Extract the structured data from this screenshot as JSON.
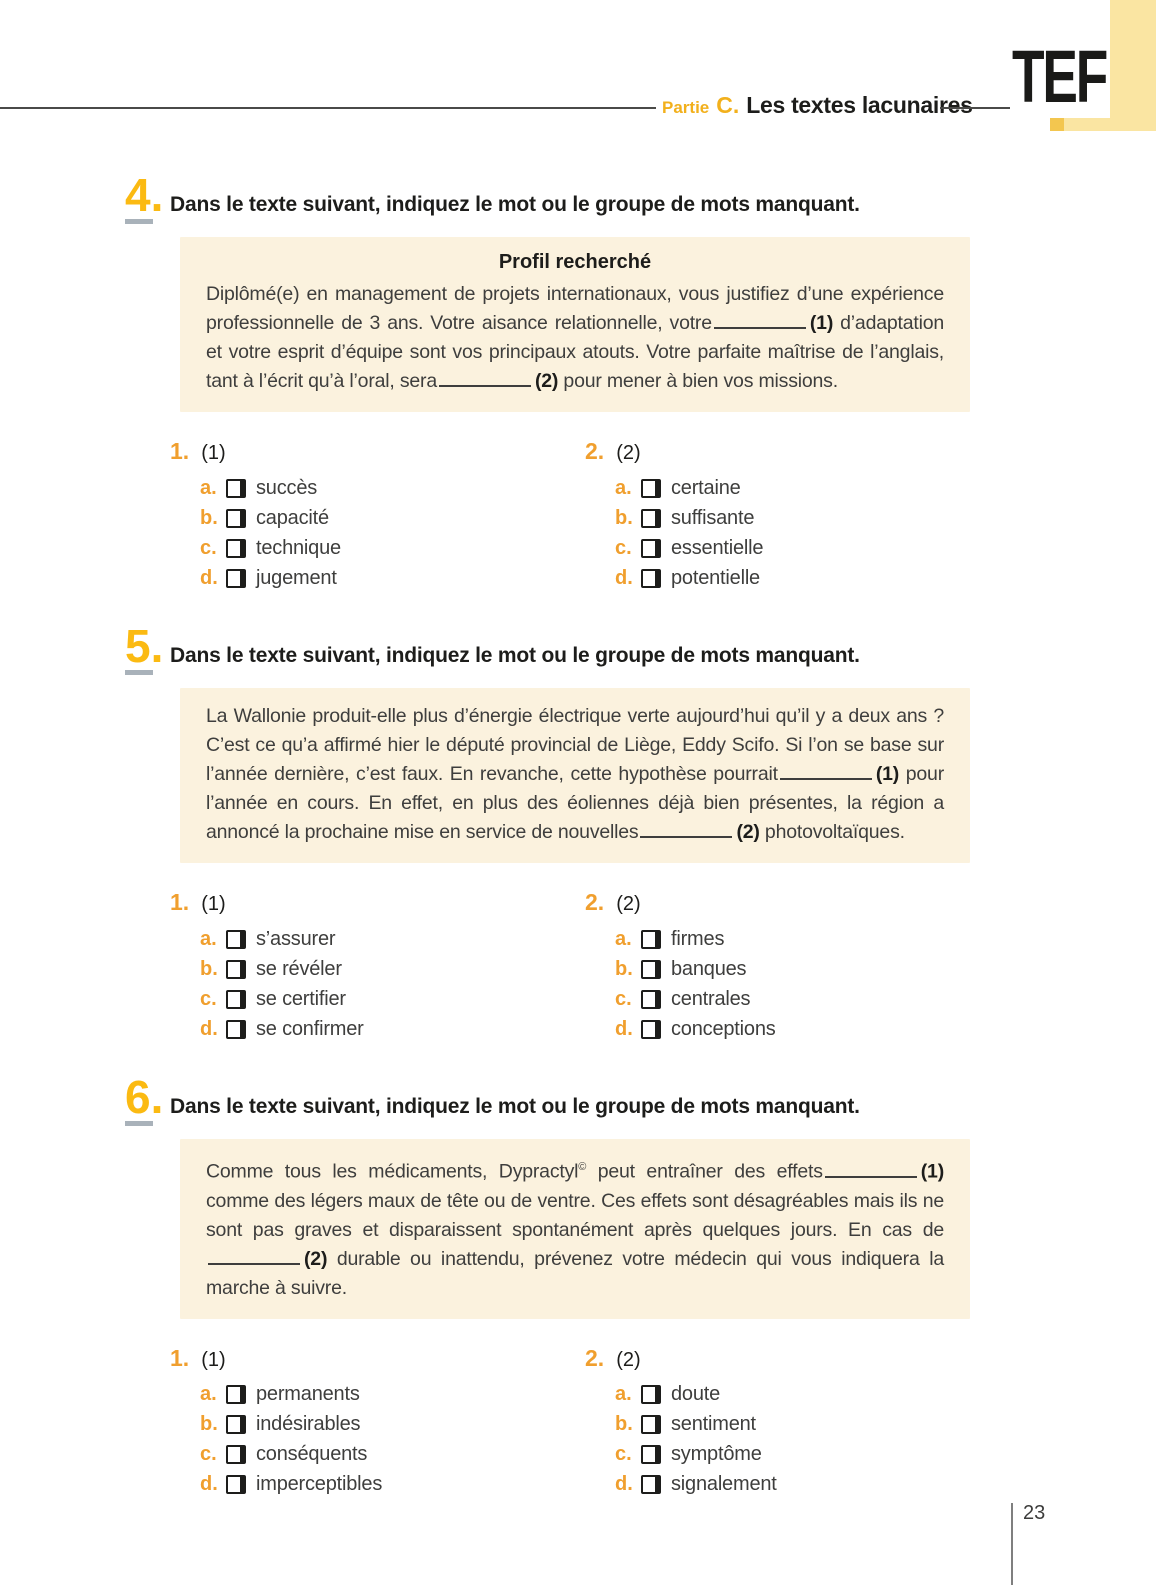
{
  "header": {
    "partie_label": "Partie",
    "partie_letter": "C.",
    "section_title": "Les textes lacunaires",
    "logo": "TEF"
  },
  "footer": {
    "page_number": "23"
  },
  "colors": {
    "accent_gold": "#fbba12",
    "accent_orange": "#f09f2e",
    "passage_box_bg": "#fbf2de",
    "corner_band_yellow": "#fae5a2",
    "corner_band_square": "#f3c64f",
    "number_underline_grey": "#a9b2ba"
  },
  "exercises": [
    {
      "number": "4.",
      "instruction": "Dans le texte suivant, indiquez le mot ou le groupe de mots manquant.",
      "box_title": "Profil recherché",
      "passage": [
        {
          "type": "text",
          "text": "Diplômé(e) en management de projets internationaux, vous justifiez d’une expérience professionnelle de 3 ans. Votre aisance relationnelle, votre"
        },
        {
          "type": "blank"
        },
        {
          "type": "strong",
          "text": "(1)"
        },
        {
          "type": "text",
          "text": " d’adaptation et votre esprit d’équipe sont vos principaux atouts. Votre parfaite maîtrise de l’anglais, tant à l’écrit qu’à l’oral, sera"
        },
        {
          "type": "blank"
        },
        {
          "type": "strong",
          "text": "(2)"
        },
        {
          "type": "text",
          "text": " pour mener à bien vos missions."
        }
      ],
      "questions": [
        {
          "number": "1.",
          "label": "(1)",
          "options": [
            {
              "letter": "a.",
              "text": "succès"
            },
            {
              "letter": "b.",
              "text": "capacité"
            },
            {
              "letter": "c.",
              "text": "technique"
            },
            {
              "letter": "d.",
              "text": "jugement"
            }
          ]
        },
        {
          "number": "2.",
          "label": "(2)",
          "options": [
            {
              "letter": "a.",
              "text": "certaine"
            },
            {
              "letter": "b.",
              "text": "suffisante"
            },
            {
              "letter": "c.",
              "text": "essentielle"
            },
            {
              "letter": "d.",
              "text": "potentielle"
            }
          ]
        }
      ]
    },
    {
      "number": "5.",
      "instruction": "Dans le texte suivant, indiquez le mot ou le groupe de mots manquant.",
      "box_title": "",
      "passage": [
        {
          "type": "text",
          "text": "La Wallonie produit-elle plus d’énergie électrique verte aujourd’hui qu’il y a deux ans ? C’est ce qu’a affirmé hier le député provincial de Liège, Eddy Scifo. Si l’on se base sur l’année dernière, c’est faux. En revanche, cette hypothèse pourrait"
        },
        {
          "type": "blank"
        },
        {
          "type": "strong",
          "text": "(1)"
        },
        {
          "type": "text",
          "text": " pour l’année en cours. En effet, en plus des éoliennes déjà bien présentes, la région a annoncé la prochaine mise en service de nouvelles"
        },
        {
          "type": "blank"
        },
        {
          "type": "strong",
          "text": "(2)"
        },
        {
          "type": "text",
          "text": " photovoltaïques."
        }
      ],
      "questions": [
        {
          "number": "1.",
          "label": "(1)",
          "options": [
            {
              "letter": "a.",
              "text": "s’assurer"
            },
            {
              "letter": "b.",
              "text": "se révéler"
            },
            {
              "letter": "c.",
              "text": "se certifier"
            },
            {
              "letter": "d.",
              "text": "se confirmer"
            }
          ]
        },
        {
          "number": "2.",
          "label": "(2)",
          "options": [
            {
              "letter": "a.",
              "text": "firmes"
            },
            {
              "letter": "b.",
              "text": "banques"
            },
            {
              "letter": "c.",
              "text": "centrales"
            },
            {
              "letter": "d.",
              "text": "conceptions"
            }
          ]
        }
      ]
    },
    {
      "number": "6.",
      "instruction": "Dans le texte suivant, indiquez le mot ou le groupe de mots manquant.",
      "box_title": "",
      "passage": [
        {
          "type": "text",
          "text": "Comme tous les médicaments, Dypractyl"
        },
        {
          "type": "sup",
          "text": "©"
        },
        {
          "type": "text",
          "text": " peut entraîner des effets"
        },
        {
          "type": "blank"
        },
        {
          "type": "strong",
          "text": "(1)"
        },
        {
          "type": "text",
          "text": " comme des légers maux de tête ou de ventre. Ces effets sont désagréables mais ils ne sont pas graves et disparaissent spontanément après quelques jours. En cas de"
        },
        {
          "type": "blank"
        },
        {
          "type": "strong",
          "text": "(2)"
        },
        {
          "type": "text",
          "text": " durable ou inattendu, prévenez votre médecin qui vous indiquera la marche à suivre."
        }
      ],
      "questions": [
        {
          "number": "1.",
          "label": "(1)",
          "options": [
            {
              "letter": "a.",
              "text": "permanents"
            },
            {
              "letter": "b.",
              "text": "indésirables"
            },
            {
              "letter": "c.",
              "text": "conséquents"
            },
            {
              "letter": "d.",
              "text": "imperceptibles"
            }
          ]
        },
        {
          "number": "2.",
          "label": "(2)",
          "options": [
            {
              "letter": "a.",
              "text": "doute"
            },
            {
              "letter": "b.",
              "text": "sentiment"
            },
            {
              "letter": "c.",
              "text": "symptôme"
            },
            {
              "letter": "d.",
              "text": "signalement"
            }
          ]
        }
      ]
    }
  ]
}
